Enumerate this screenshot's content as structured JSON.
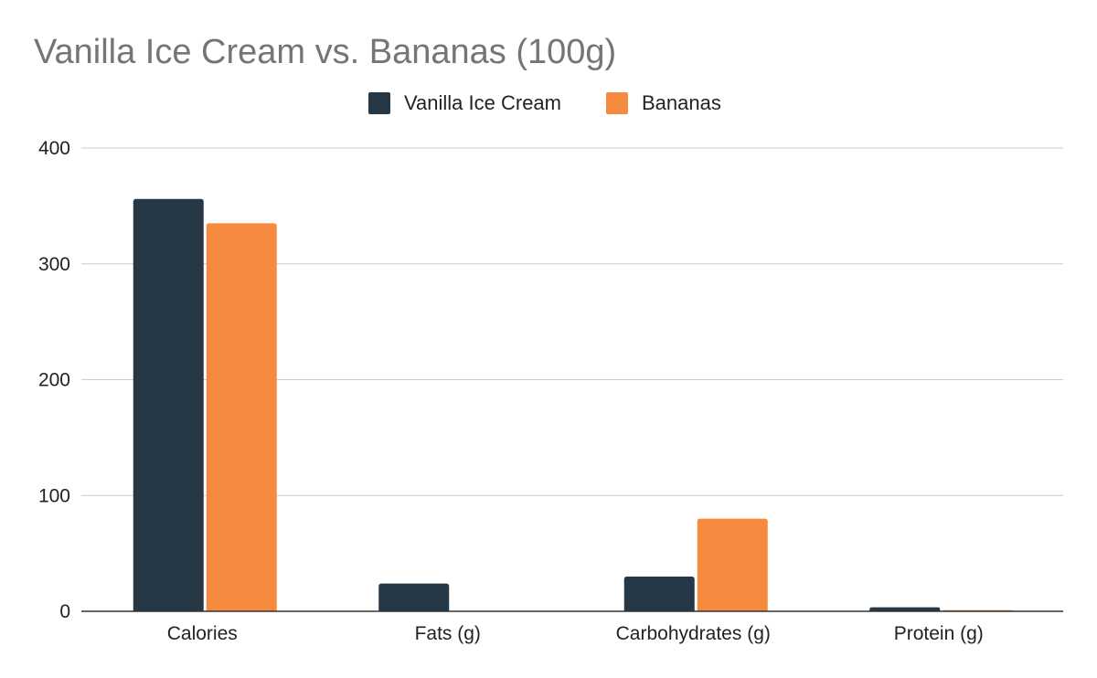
{
  "chart_data": {
    "type": "bar",
    "title": "Vanilla Ice Cream vs. Bananas (100g)",
    "categories": [
      "Calories",
      "Fats (g)",
      "Carbohydrates (g)",
      "Protein (g)"
    ],
    "series": [
      {
        "name": "Vanilla Ice Cream",
        "color": "#263746",
        "values": [
          356,
          24,
          30,
          3.5
        ]
      },
      {
        "name": "Bananas",
        "color": "#F68B3F",
        "values": [
          335,
          0.3,
          80,
          1
        ]
      }
    ],
    "yticks": [
      "0",
      "100",
      "200",
      "300",
      "400"
    ],
    "ylim": [
      0,
      400
    ],
    "grid": true,
    "legend_position": "top-center"
  }
}
